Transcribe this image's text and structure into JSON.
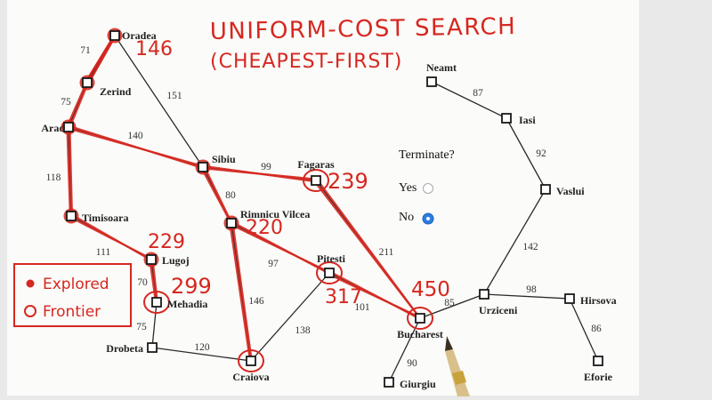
{
  "title": "UNIFORM-COST SEARCH",
  "subtitle": "(CHEAPEST-FIRST)",
  "question": {
    "prompt": "Terminate?",
    "options": [
      {
        "label": "Yes",
        "selected": false
      },
      {
        "label": "No",
        "selected": true
      }
    ]
  },
  "legend": {
    "explored_label": "Explored",
    "frontier_label": "Frontier"
  },
  "cities": [
    {
      "id": "oradea",
      "name": "Oradea"
    },
    {
      "id": "zerind",
      "name": "Zerind"
    },
    {
      "id": "arad",
      "name": "Arad"
    },
    {
      "id": "timisoara",
      "name": "Timisoara"
    },
    {
      "id": "lugoj",
      "name": "Lugoj"
    },
    {
      "id": "mehadia",
      "name": "Mehadia"
    },
    {
      "id": "drobeta",
      "name": "Drobeta"
    },
    {
      "id": "craiova",
      "name": "Craiova"
    },
    {
      "id": "sibiu",
      "name": "Sibiu"
    },
    {
      "id": "rimnicu",
      "name": "Rimnicu Vilcea"
    },
    {
      "id": "fagaras",
      "name": "Fagaras"
    },
    {
      "id": "pitesti",
      "name": "Pitesti"
    },
    {
      "id": "bucharest",
      "name": "Bucharest"
    },
    {
      "id": "giurgiu",
      "name": "Giurgiu"
    },
    {
      "id": "urziceni",
      "name": "Urziceni"
    },
    {
      "id": "hirsova",
      "name": "Hirsova"
    },
    {
      "id": "eforie",
      "name": "Eforie"
    },
    {
      "id": "vaslui",
      "name": "Vaslui"
    },
    {
      "id": "iasi",
      "name": "Iasi"
    },
    {
      "id": "neamt",
      "name": "Neamt"
    }
  ],
  "edges": [
    {
      "from": "oradea",
      "to": "zerind",
      "cost": "71"
    },
    {
      "from": "oradea",
      "to": "sibiu",
      "cost": "151"
    },
    {
      "from": "zerind",
      "to": "arad",
      "cost": "75"
    },
    {
      "from": "arad",
      "to": "sibiu",
      "cost": "140"
    },
    {
      "from": "arad",
      "to": "timisoara",
      "cost": "118"
    },
    {
      "from": "timisoara",
      "to": "lugoj",
      "cost": "111"
    },
    {
      "from": "lugoj",
      "to": "mehadia",
      "cost": "70"
    },
    {
      "from": "mehadia",
      "to": "drobeta",
      "cost": "75"
    },
    {
      "from": "drobeta",
      "to": "craiova",
      "cost": "120"
    },
    {
      "from": "sibiu",
      "to": "fagaras",
      "cost": "99"
    },
    {
      "from": "sibiu",
      "to": "rimnicu",
      "cost": "80"
    },
    {
      "from": "rimnicu",
      "to": "pitesti",
      "cost": "97"
    },
    {
      "from": "rimnicu",
      "to": "craiova",
      "cost": "146"
    },
    {
      "from": "craiova",
      "to": "pitesti",
      "cost": "138"
    },
    {
      "from": "fagaras",
      "to": "bucharest",
      "cost": "211"
    },
    {
      "from": "pitesti",
      "to": "bucharest",
      "cost": "101"
    },
    {
      "from": "bucharest",
      "to": "giurgiu",
      "cost": "90"
    },
    {
      "from": "bucharest",
      "to": "urziceni",
      "cost": "85"
    },
    {
      "from": "urziceni",
      "to": "hirsova",
      "cost": "98"
    },
    {
      "from": "hirsova",
      "to": "eforie",
      "cost": "86"
    },
    {
      "from": "urziceni",
      "to": "vaslui",
      "cost": "142"
    },
    {
      "from": "vaslui",
      "to": "iasi",
      "cost": "92"
    },
    {
      "from": "iasi",
      "to": "neamt",
      "cost": "87"
    }
  ],
  "path_costs": [
    {
      "city": "oradea",
      "value": "146"
    },
    {
      "city": "rimnicu",
      "value": "220"
    },
    {
      "city": "fagaras",
      "value": "239"
    },
    {
      "city": "lugoj",
      "value": "229"
    },
    {
      "city": "mehadia",
      "value": "299"
    },
    {
      "city": "pitesti",
      "value": "317"
    },
    {
      "city": "bucharest",
      "value": "450"
    }
  ],
  "colors": {
    "ink_red": "#d6271f",
    "radio_blue": "#2a7de1"
  }
}
